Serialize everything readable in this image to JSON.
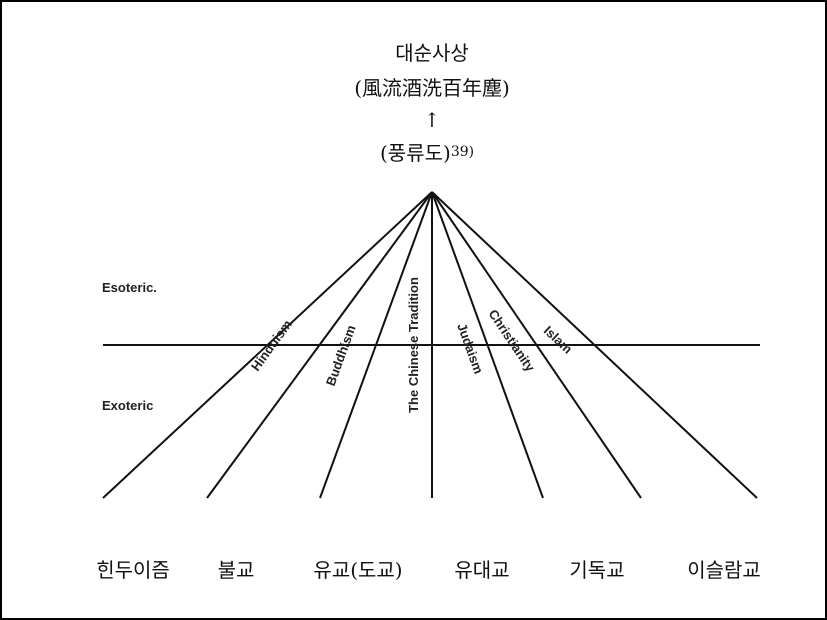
{
  "header": {
    "title": "대순사상",
    "subtitle": "(風流酒洗百年塵)",
    "arrow": "↑",
    "source": {
      "text": "(풍류도)",
      "note": "39)"
    }
  },
  "levels": {
    "upper": "Esoteric.",
    "lower": "Exoteric"
  },
  "traditions": [
    "Hinduism",
    "Buddhism",
    "The Chinese Tradition",
    "Judaism",
    "Christianity",
    "Islam"
  ],
  "korean_labels": [
    "힌두이즘",
    "불교",
    "유교(도교)",
    "유대교",
    "기독교",
    "이슬람교"
  ]
}
